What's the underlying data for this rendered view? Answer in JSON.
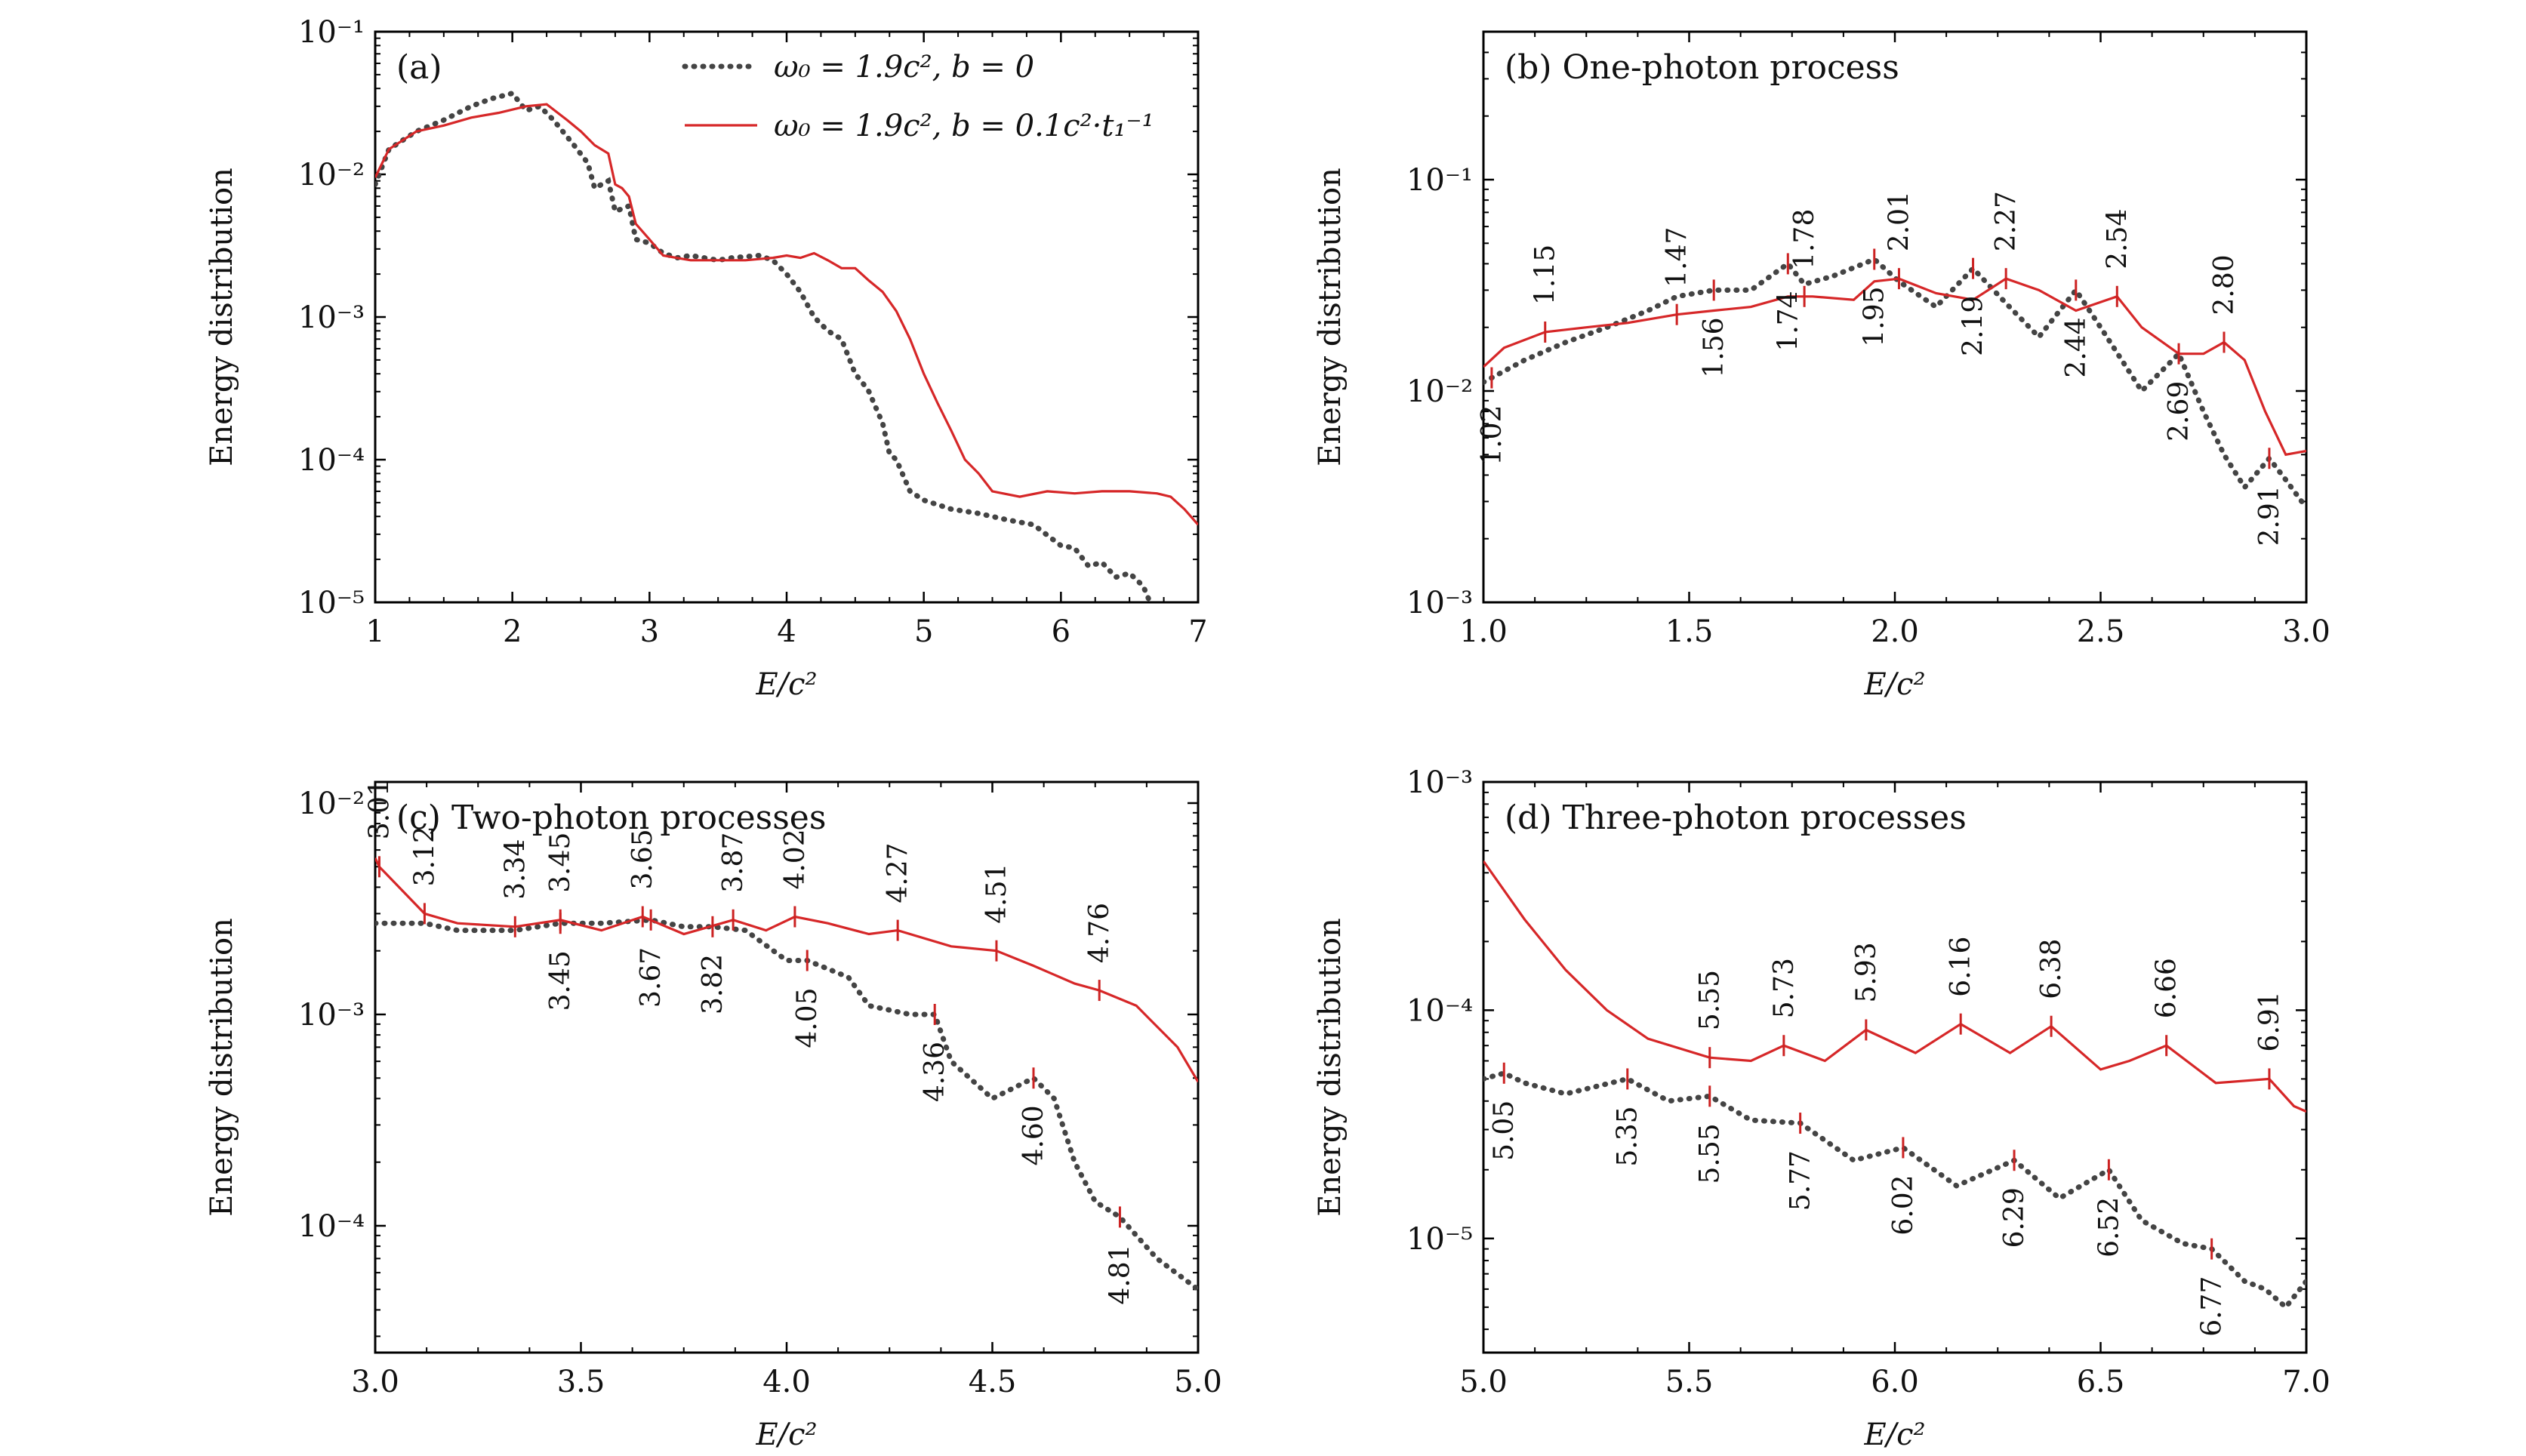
{
  "colors": {
    "dotted": "#444444",
    "red": "#d62728",
    "marker": "#cc2222",
    "frame": "#000000"
  },
  "legend": {
    "entries": [
      {
        "label": "ω₀ = 1.9c², b = 0",
        "style": "dotted"
      },
      {
        "label": "ω₀ = 1.9c², b = 0.1c²·t₁⁻¹",
        "style": "solid"
      }
    ]
  },
  "chart_data": [
    {
      "type": "line",
      "title": "(a)",
      "xlabel": "E/c²",
      "ylabel": "Energy distribution",
      "xlim": [
        1,
        7
      ],
      "ylim_log10": [
        -5,
        -1
      ],
      "yscale": "log",
      "xticks": [
        "1",
        "2",
        "3",
        "4",
        "5",
        "6",
        "7"
      ],
      "yticks": [
        {
          "exp": -5,
          "label": "10⁻⁵"
        },
        {
          "exp": -4,
          "label": "10⁻⁴"
        },
        {
          "exp": -3,
          "label": "10⁻³"
        },
        {
          "exp": -2,
          "label": "10⁻²"
        },
        {
          "exp": -1,
          "label": "10⁻¹"
        }
      ],
      "legend_position": "top-right",
      "series": [
        {
          "name": "ω₀ = 1.9c², b = 0",
          "style": "dotted",
          "x": [
            1.0,
            1.1,
            1.3,
            1.5,
            1.7,
            1.85,
            2.0,
            2.1,
            2.2,
            2.3,
            2.45,
            2.55,
            2.6,
            2.7,
            2.75,
            2.85,
            2.9,
            3.0,
            3.1,
            3.2,
            3.3,
            3.5,
            3.6,
            3.8,
            3.9,
            4.0,
            4.1,
            4.2,
            4.3,
            4.4,
            4.5,
            4.55,
            4.6,
            4.7,
            4.75,
            4.8,
            4.9,
            5.0,
            5.2,
            5.4,
            5.6,
            5.8,
            6.0,
            6.1,
            6.2,
            6.3,
            6.4,
            6.5,
            6.6,
            6.65
          ],
          "y": [
            0.0085,
            0.015,
            0.02,
            0.024,
            0.03,
            0.034,
            0.037,
            0.028,
            0.03,
            0.024,
            0.016,
            0.012,
            0.008,
            0.009,
            0.0055,
            0.006,
            0.0035,
            0.0033,
            0.0028,
            0.0026,
            0.0027,
            0.0025,
            0.0026,
            0.0027,
            0.0025,
            0.002,
            0.0015,
            0.001,
            0.0008,
            0.0007,
            0.0004,
            0.00035,
            0.0003,
            0.00018,
            0.00011,
            0.0001,
            6e-05,
            5.2e-05,
            4.5e-05,
            4.2e-05,
            3.8e-05,
            3.5e-05,
            2.5e-05,
            2.4e-05,
            1.8e-05,
            1.9e-05,
            1.5e-05,
            1.6e-05,
            1.3e-05,
            1e-05
          ]
        },
        {
          "name": "ω₀ = 1.9c², b = 0.1c²·t₁⁻¹",
          "style": "solid",
          "x": [
            1.0,
            1.1,
            1.3,
            1.5,
            1.7,
            1.9,
            2.1,
            2.25,
            2.4,
            2.5,
            2.6,
            2.7,
            2.75,
            2.8,
            2.85,
            2.9,
            3.0,
            3.1,
            3.3,
            3.5,
            3.7,
            3.9,
            4.0,
            4.1,
            4.2,
            4.3,
            4.4,
            4.5,
            4.6,
            4.7,
            4.8,
            4.9,
            5.0,
            5.1,
            5.2,
            5.3,
            5.4,
            5.5,
            5.7,
            5.9,
            6.1,
            6.3,
            6.5,
            6.7,
            6.8,
            6.9,
            7.0
          ],
          "y": [
            0.0095,
            0.015,
            0.02,
            0.022,
            0.025,
            0.027,
            0.03,
            0.031,
            0.024,
            0.02,
            0.016,
            0.014,
            0.0085,
            0.008,
            0.007,
            0.0045,
            0.0035,
            0.0027,
            0.0025,
            0.0025,
            0.0025,
            0.0026,
            0.0027,
            0.0026,
            0.0028,
            0.0025,
            0.0022,
            0.0022,
            0.0018,
            0.0015,
            0.0011,
            0.0007,
            0.0004,
            0.00025,
            0.00016,
            0.0001,
            8e-05,
            6e-05,
            5.5e-05,
            6e-05,
            5.8e-05,
            6e-05,
            6e-05,
            5.8e-05,
            5.5e-05,
            4.5e-05,
            3.5e-05
          ]
        }
      ],
      "annotations": []
    },
    {
      "type": "line",
      "title": "(b) One-photon process",
      "xlabel": "E/c²",
      "ylabel": "Energy distribution",
      "xlim": [
        1.0,
        3.0
      ],
      "ylim_log10": [
        -3,
        -0.3
      ],
      "yscale": "log",
      "xticks": [
        "1.0",
        "1.5",
        "2.0",
        "2.5",
        "3.0"
      ],
      "yticks": [
        {
          "exp": -3,
          "label": "10⁻³"
        },
        {
          "exp": -2,
          "label": "10⁻²"
        },
        {
          "exp": -1,
          "label": "10⁻¹"
        }
      ],
      "series": [
        {
          "name": "",
          "style": "dotted",
          "x": [
            1.0,
            1.1,
            1.2,
            1.3,
            1.4,
            1.47,
            1.56,
            1.65,
            1.74,
            1.78,
            1.85,
            1.95,
            2.01,
            2.1,
            2.19,
            2.27,
            2.35,
            2.44,
            2.5,
            2.6,
            2.69,
            2.75,
            2.8,
            2.85,
            2.91,
            2.95,
            3.0
          ],
          "y": [
            0.011,
            0.014,
            0.017,
            0.02,
            0.024,
            0.028,
            0.03,
            0.03,
            0.04,
            0.032,
            0.035,
            0.042,
            0.033,
            0.025,
            0.038,
            0.026,
            0.018,
            0.03,
            0.02,
            0.01,
            0.015,
            0.008,
            0.005,
            0.0035,
            0.0048,
            0.0038,
            0.0028
          ]
        },
        {
          "name": "",
          "style": "solid",
          "x": [
            1.0,
            1.05,
            1.15,
            1.25,
            1.35,
            1.47,
            1.56,
            1.65,
            1.74,
            1.8,
            1.9,
            1.95,
            2.01,
            2.1,
            2.19,
            2.27,
            2.35,
            2.44,
            2.54,
            2.6,
            2.69,
            2.75,
            2.8,
            2.85,
            2.9,
            2.95,
            3.0
          ],
          "y": [
            0.013,
            0.016,
            0.019,
            0.02,
            0.021,
            0.023,
            0.024,
            0.025,
            0.028,
            0.028,
            0.027,
            0.033,
            0.034,
            0.029,
            0.027,
            0.034,
            0.03,
            0.024,
            0.028,
            0.02,
            0.015,
            0.015,
            0.017,
            0.014,
            0.008,
            0.005,
            0.0052
          ]
        }
      ],
      "annotations": [
        {
          "x": 1.02,
          "label": "1.02",
          "series": "dotted"
        },
        {
          "x": 1.15,
          "label": "1.15",
          "series": "solid"
        },
        {
          "x": 1.47,
          "label": "1.47",
          "series": "solid"
        },
        {
          "x": 1.56,
          "label": "1.56",
          "series": "dotted"
        },
        {
          "x": 1.74,
          "label": "1.74",
          "series": "dotted"
        },
        {
          "x": 1.78,
          "label": "1.78",
          "series": "solid"
        },
        {
          "x": 1.95,
          "label": "1.95",
          "series": "dotted"
        },
        {
          "x": 2.01,
          "label": "2.01",
          "series": "solid"
        },
        {
          "x": 2.19,
          "label": "2.19",
          "series": "dotted"
        },
        {
          "x": 2.27,
          "label": "2.27",
          "series": "solid"
        },
        {
          "x": 2.44,
          "label": "2.44",
          "series": "dotted"
        },
        {
          "x": 2.54,
          "label": "2.54",
          "series": "solid"
        },
        {
          "x": 2.69,
          "label": "2.69",
          "series": "dotted"
        },
        {
          "x": 2.8,
          "label": "2.80",
          "series": "solid"
        },
        {
          "x": 2.91,
          "label": "2.91",
          "series": "dotted"
        }
      ]
    },
    {
      "type": "line",
      "title": "(c) Two-photon processes",
      "xlabel": "E/c²",
      "ylabel": "Energy distribution",
      "xlim": [
        3.0,
        5.0
      ],
      "ylim_log10": [
        -4.6,
        -1.9
      ],
      "yscale": "log",
      "xticks": [
        "3.0",
        "3.5",
        "4.0",
        "4.5",
        "5.0"
      ],
      "yticks": [
        {
          "exp": -4,
          "label": "10⁻⁴"
        },
        {
          "exp": -3,
          "label": "10⁻³"
        },
        {
          "exp": -2,
          "label": "10⁻²"
        }
      ],
      "series": [
        {
          "name": "",
          "style": "dotted",
          "x": [
            3.0,
            3.12,
            3.2,
            3.34,
            3.45,
            3.55,
            3.67,
            3.75,
            3.82,
            3.9,
            4.0,
            4.05,
            4.15,
            4.2,
            4.3,
            4.36,
            4.4,
            4.5,
            4.6,
            4.65,
            4.7,
            4.75,
            4.81,
            4.9,
            5.0
          ],
          "y": [
            0.0027,
            0.0027,
            0.0025,
            0.0025,
            0.0027,
            0.0027,
            0.0028,
            0.0026,
            0.0026,
            0.0025,
            0.0018,
            0.0018,
            0.0015,
            0.0011,
            0.001,
            0.001,
            0.0006,
            0.0004,
            0.0005,
            0.0004,
            0.0002,
            0.00013,
            0.00011,
            7e-05,
            5e-05
          ]
        },
        {
          "name": "",
          "style": "solid",
          "x": [
            3.0,
            3.01,
            3.12,
            3.2,
            3.34,
            3.45,
            3.55,
            3.65,
            3.75,
            3.87,
            3.95,
            4.02,
            4.1,
            4.2,
            4.27,
            4.4,
            4.51,
            4.6,
            4.7,
            4.76,
            4.85,
            4.95,
            5.0
          ],
          "y": [
            0.0055,
            0.005,
            0.003,
            0.0027,
            0.0026,
            0.0028,
            0.0025,
            0.0029,
            0.0024,
            0.0028,
            0.0025,
            0.0029,
            0.0027,
            0.0024,
            0.0025,
            0.0021,
            0.002,
            0.0017,
            0.0014,
            0.0013,
            0.0011,
            0.0007,
            0.00048
          ]
        }
      ],
      "annotations": [
        {
          "x": 3.01,
          "label": "3.01",
          "series": "solid"
        },
        {
          "x": 3.12,
          "label": "3.12",
          "series": "solid"
        },
        {
          "x": 3.34,
          "label": "3.34",
          "series": "solid"
        },
        {
          "x": 3.45,
          "label": "3.45",
          "series": "solid"
        },
        {
          "x": 3.45,
          "label": "3.45",
          "series": "dotted"
        },
        {
          "x": 3.65,
          "label": "3.65",
          "series": "solid"
        },
        {
          "x": 3.67,
          "label": "3.67",
          "series": "dotted"
        },
        {
          "x": 3.82,
          "label": "3.82",
          "series": "dotted"
        },
        {
          "x": 3.87,
          "label": "3.87",
          "series": "solid"
        },
        {
          "x": 4.02,
          "label": "4.02",
          "series": "solid"
        },
        {
          "x": 4.05,
          "label": "4.05",
          "series": "dotted"
        },
        {
          "x": 4.27,
          "label": "4.27",
          "series": "solid"
        },
        {
          "x": 4.36,
          "label": "4.36",
          "series": "dotted"
        },
        {
          "x": 4.51,
          "label": "4.51",
          "series": "solid"
        },
        {
          "x": 4.6,
          "label": "4.60",
          "series": "dotted"
        },
        {
          "x": 4.76,
          "label": "4.76",
          "series": "solid"
        },
        {
          "x": 4.81,
          "label": "4.81",
          "series": "dotted"
        }
      ]
    },
    {
      "type": "line",
      "title": "(d) Three-photon processes",
      "xlabel": "E/c²",
      "ylabel": "Energy distribution",
      "xlim": [
        5.0,
        7.0
      ],
      "ylim_log10": [
        -5.5,
        -3
      ],
      "yscale": "log",
      "xticks": [
        "5.0",
        "5.5",
        "6.0",
        "6.5",
        "7.0"
      ],
      "yticks": [
        {
          "exp": -5,
          "label": "10⁻⁵"
        },
        {
          "exp": -4,
          "label": "10⁻⁴"
        },
        {
          "exp": -3,
          "label": "10⁻³"
        }
      ],
      "series": [
        {
          "name": "",
          "style": "dotted",
          "x": [
            5.0,
            5.05,
            5.1,
            5.2,
            5.35,
            5.45,
            5.55,
            5.65,
            5.77,
            5.9,
            6.02,
            6.15,
            6.29,
            6.4,
            6.52,
            6.6,
            6.7,
            6.77,
            6.85,
            6.9,
            6.95,
            7.0
          ],
          "y": [
            5e-05,
            5.3e-05,
            4.8e-05,
            4.3e-05,
            5e-05,
            4e-05,
            4.2e-05,
            3.3e-05,
            3.2e-05,
            2.2e-05,
            2.5e-05,
            1.7e-05,
            2.2e-05,
            1.5e-05,
            2e-05,
            1.2e-05,
            9.5e-06,
            9e-06,
            6.5e-06,
            6e-06,
            5e-06,
            6.5e-06
          ]
        },
        {
          "name": "",
          "style": "solid",
          "x": [
            5.0,
            5.1,
            5.2,
            5.3,
            5.4,
            5.55,
            5.65,
            5.73,
            5.83,
            5.93,
            6.05,
            6.16,
            6.28,
            6.38,
            6.5,
            6.57,
            6.66,
            6.78,
            6.91,
            6.97,
            7.0
          ],
          "y": [
            0.00045,
            0.00025,
            0.00015,
            0.0001,
            7.5e-05,
            6.2e-05,
            6e-05,
            7e-05,
            6e-05,
            8.2e-05,
            6.5e-05,
            8.7e-05,
            6.5e-05,
            8.5e-05,
            5.5e-05,
            6e-05,
            7e-05,
            4.8e-05,
            5e-05,
            3.8e-05,
            3.6e-05
          ]
        }
      ],
      "annotations": [
        {
          "x": 5.05,
          "label": "5.05",
          "series": "dotted"
        },
        {
          "x": 5.35,
          "label": "5.35",
          "series": "dotted"
        },
        {
          "x": 5.55,
          "label": "5.55",
          "series": "solid"
        },
        {
          "x": 5.55,
          "label": "5.55",
          "series": "dotted"
        },
        {
          "x": 5.73,
          "label": "5.73",
          "series": "solid"
        },
        {
          "x": 5.77,
          "label": "5.77",
          "series": "dotted"
        },
        {
          "x": 5.93,
          "label": "5.93",
          "series": "solid"
        },
        {
          "x": 6.02,
          "label": "6.02",
          "series": "dotted"
        },
        {
          "x": 6.16,
          "label": "6.16",
          "series": "solid"
        },
        {
          "x": 6.29,
          "label": "6.29",
          "series": "dotted"
        },
        {
          "x": 6.38,
          "label": "6.38",
          "series": "solid"
        },
        {
          "x": 6.52,
          "label": "6.52",
          "series": "dotted"
        },
        {
          "x": 6.66,
          "label": "6.66",
          "series": "solid"
        },
        {
          "x": 6.77,
          "label": "6.77",
          "series": "dotted"
        },
        {
          "x": 6.91,
          "label": "6.91",
          "series": "solid"
        }
      ]
    }
  ]
}
